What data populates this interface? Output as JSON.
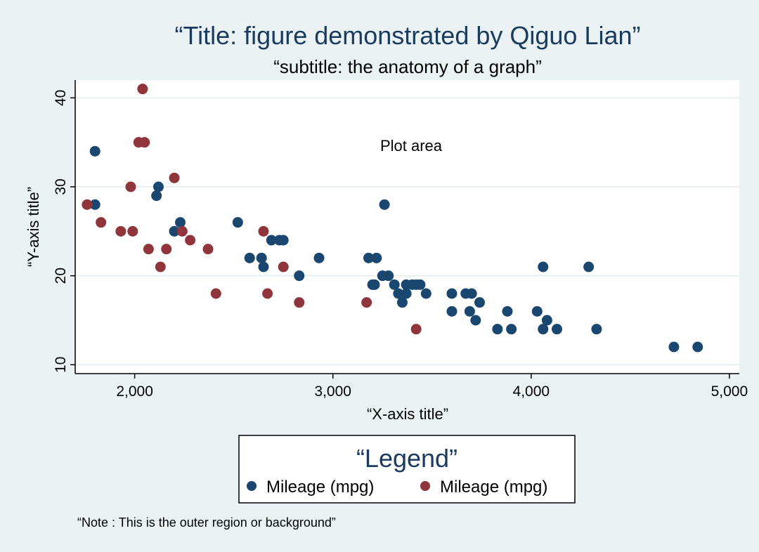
{
  "chart_data": {
    "type": "scatter",
    "title": "“Title: figure demonstrated by Qiguo Lian”",
    "subtitle": "“subtitle: the anatomy of a graph”",
    "xlabel": "“X-axis title”",
    "ylabel": "“Y-axis title”",
    "xlim": [
      1700,
      5050
    ],
    "ylim": [
      9,
      42
    ],
    "xticks": [
      2000,
      3000,
      4000,
      5000
    ],
    "xtick_labels": [
      "2,000",
      "3,000",
      "4,000",
      "5,000"
    ],
    "yticks": [
      10,
      20,
      30,
      40
    ],
    "ytick_labels": [
      "10",
      "20",
      "30",
      "40"
    ],
    "grid": true,
    "annotation": "Plot area",
    "legend": {
      "title": "“Legend”",
      "placement": "bottom-center"
    },
    "note": "“Note : This is the outer region or background”",
    "series": [
      {
        "name": "Mileage (mpg)",
        "color": "#1a476f",
        "points": [
          [
            1800,
            34
          ],
          [
            1800,
            28
          ],
          [
            2110,
            29
          ],
          [
            2120,
            30
          ],
          [
            2200,
            25
          ],
          [
            2230,
            26
          ],
          [
            2520,
            26
          ],
          [
            2580,
            22
          ],
          [
            2640,
            22
          ],
          [
            2650,
            21
          ],
          [
            2690,
            24
          ],
          [
            2730,
            24
          ],
          [
            2750,
            24
          ],
          [
            2830,
            20
          ],
          [
            2930,
            22
          ],
          [
            3180,
            22
          ],
          [
            3200,
            19
          ],
          [
            3210,
            19
          ],
          [
            3220,
            22
          ],
          [
            3250,
            20
          ],
          [
            3260,
            28
          ],
          [
            3280,
            20
          ],
          [
            3310,
            19
          ],
          [
            3330,
            18
          ],
          [
            3350,
            17
          ],
          [
            3370,
            19
          ],
          [
            3370,
            18
          ],
          [
            3400,
            19
          ],
          [
            3420,
            19
          ],
          [
            3440,
            19
          ],
          [
            3470,
            18
          ],
          [
            3600,
            18
          ],
          [
            3600,
            16
          ],
          [
            3670,
            18
          ],
          [
            3690,
            16
          ],
          [
            3700,
            18
          ],
          [
            3720,
            15
          ],
          [
            3740,
            17
          ],
          [
            3830,
            14
          ],
          [
            3880,
            16
          ],
          [
            3900,
            14
          ],
          [
            4030,
            16
          ],
          [
            4060,
            21
          ],
          [
            4060,
            14
          ],
          [
            4080,
            15
          ],
          [
            4130,
            14
          ],
          [
            4290,
            21
          ],
          [
            4330,
            14
          ],
          [
            4720,
            12
          ],
          [
            4840,
            12
          ]
        ]
      },
      {
        "name": "Mileage (mpg)",
        "color": "#90353b",
        "points": [
          [
            1760,
            28
          ],
          [
            1830,
            26
          ],
          [
            1930,
            25
          ],
          [
            1980,
            30
          ],
          [
            1990,
            25
          ],
          [
            2020,
            35
          ],
          [
            2040,
            41
          ],
          [
            2050,
            35
          ],
          [
            2070,
            23
          ],
          [
            2130,
            21
          ],
          [
            2160,
            23
          ],
          [
            2200,
            31
          ],
          [
            2240,
            25
          ],
          [
            2280,
            24
          ],
          [
            2370,
            23
          ],
          [
            2410,
            18
          ],
          [
            2650,
            25
          ],
          [
            2670,
            18
          ],
          [
            2750,
            21
          ],
          [
            2830,
            17
          ],
          [
            3170,
            17
          ],
          [
            3420,
            14
          ]
        ]
      }
    ]
  }
}
